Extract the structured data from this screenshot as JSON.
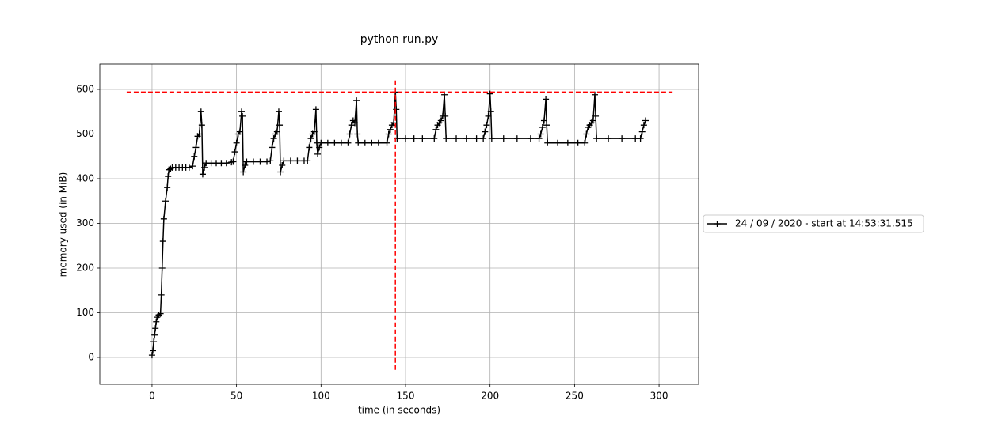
{
  "chart_data": {
    "type": "line",
    "title": "python run.py",
    "x_label": "time (in seconds)",
    "y_label": "memory used (in MiB)",
    "xlim": [
      -30.9,
      323.4
    ],
    "ylim": [
      -60.2,
      656.6
    ],
    "xticks": [
      0,
      50,
      100,
      150,
      200,
      250,
      300
    ],
    "yticks": [
      0,
      100,
      200,
      300,
      400,
      500,
      600
    ],
    "grid": true,
    "legend": "right",
    "x": [
      0,
      0.5,
      1,
      1.5,
      2,
      2.5,
      3,
      4,
      5,
      5.5,
      6,
      6.5,
      7,
      8,
      9,
      9.5,
      10,
      11,
      12,
      14,
      16,
      18,
      20,
      22,
      24,
      25,
      26,
      27,
      28,
      29,
      29.5,
      30,
      31,
      32,
      35,
      38,
      41,
      44,
      47,
      48,
      49,
      50,
      51,
      52,
      53,
      53.5,
      54,
      55,
      56,
      60,
      64,
      68,
      70,
      71,
      72,
      73,
      74,
      75,
      75.5,
      76,
      77,
      78,
      82,
      86,
      90,
      92,
      93,
      94,
      95,
      96,
      97,
      97.5,
      98,
      99,
      100,
      104,
      108,
      112,
      116,
      117,
      118,
      119,
      120,
      121,
      121.5,
      122,
      126,
      130,
      134,
      139,
      140,
      141,
      142,
      143,
      144,
      144.5,
      145,
      150,
      155,
      160,
      167,
      168,
      169,
      170,
      171,
      172,
      173,
      173.5,
      174,
      180,
      186,
      192,
      196,
      197,
      198,
      199,
      200,
      200.5,
      201,
      208,
      216,
      224,
      229,
      230,
      231,
      232,
      233,
      233.5,
      234,
      240,
      246,
      252,
      256,
      257,
      258,
      259,
      260,
      261,
      262,
      262.5,
      263,
      270,
      278,
      286,
      289,
      290,
      291,
      292
    ],
    "series": [
      {
        "name": "24 / 09 / 2020 - start at 14:53:31.515",
        "color": "#000000",
        "values": [
          5,
          15,
          35,
          50,
          65,
          80,
          90,
          95,
          98,
          140,
          200,
          260,
          310,
          350,
          380,
          405,
          420,
          422,
          425,
          425,
          425,
          425,
          425,
          425,
          428,
          450,
          470,
          495,
          500,
          550,
          520,
          410,
          425,
          435,
          435,
          435,
          435,
          435,
          437,
          438,
          460,
          480,
          500,
          505,
          550,
          540,
          415,
          430,
          438,
          438,
          438,
          438,
          440,
          470,
          490,
          500,
          505,
          550,
          520,
          415,
          430,
          440,
          440,
          440,
          440,
          440,
          470,
          490,
          500,
          505,
          555,
          480,
          455,
          470,
          480,
          480,
          480,
          480,
          480,
          500,
          520,
          530,
          525,
          575,
          500,
          480,
          480,
          480,
          480,
          480,
          500,
          510,
          520,
          525,
          594,
          555,
          490,
          490,
          490,
          490,
          490,
          510,
          520,
          525,
          530,
          540,
          588,
          540,
          490,
          490,
          490,
          490,
          490,
          505,
          520,
          540,
          590,
          550,
          490,
          490,
          490,
          490,
          490,
          500,
          515,
          530,
          578,
          520,
          480,
          480,
          480,
          480,
          480,
          500,
          515,
          520,
          525,
          530,
          588,
          540,
          490,
          490,
          490,
          490,
          490,
          505,
          520,
          530
        ]
      }
    ],
    "peak": {
      "x": 144,
      "y": 594,
      "hline_x": [
        -15,
        308
      ],
      "vline_y": [
        -28,
        623
      ],
      "color": "#ff0000"
    }
  }
}
